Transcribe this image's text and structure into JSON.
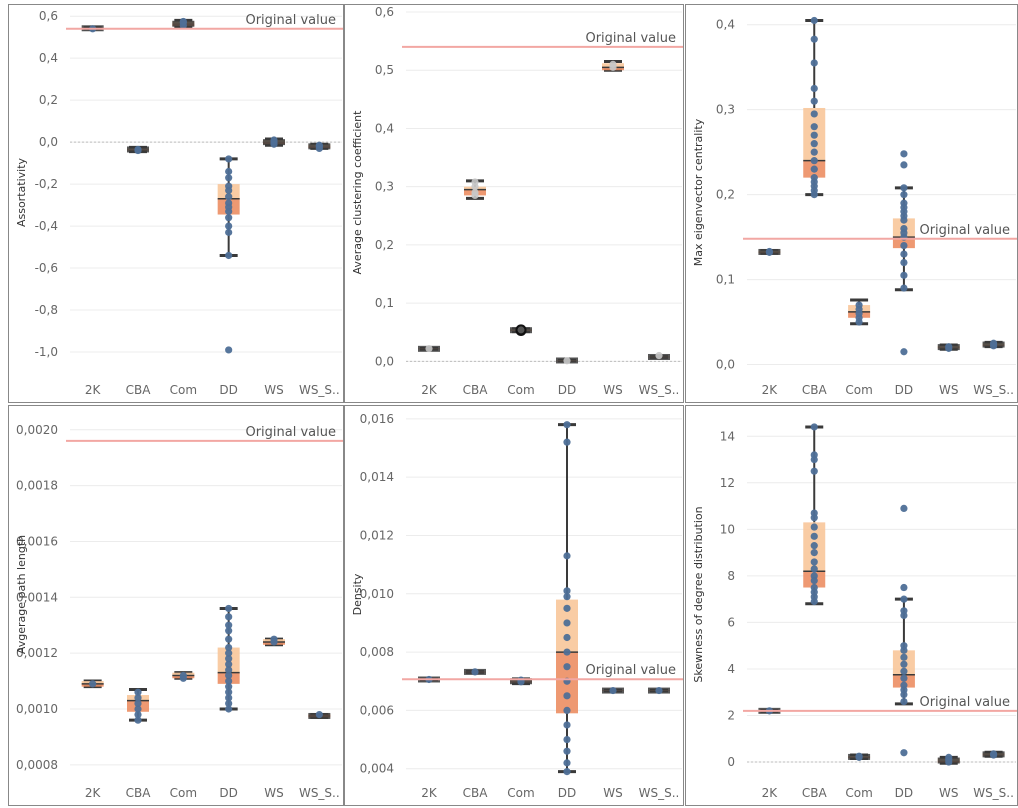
{
  "colors": {
    "original_line": "#f2a7a3",
    "point": "#4e6f97",
    "whisker": "#3a3a3a",
    "box_light": "#f8c69a",
    "box_dark": "#ec8e63",
    "zero_line": "#bdbdbd",
    "grid": "#ececec",
    "panel_border": "#888888",
    "faded_point": "#c8c8c8"
  },
  "chart_data": [
    {
      "type": "box",
      "ylabel": "Assortativity",
      "annotation": "Original value",
      "original_value": 0.54,
      "categories": [
        "2K",
        "CBA",
        "Com",
        "DD",
        "WS",
        "WS_S.."
      ],
      "ylim": [
        -1.1,
        0.62
      ],
      "yticks": [
        0.6,
        0.4,
        0.2,
        0.0,
        -0.2,
        -0.4,
        -0.6,
        -0.8,
        -1.0
      ],
      "ytick_labels": [
        "0,6",
        "0,4",
        "0,2",
        "0,0",
        "-0,2",
        "-0,4",
        "-0,6",
        "-0,8",
        "-1,0"
      ],
      "zero_line": true,
      "groups": [
        {
          "category": "2K",
          "min": 0.54,
          "q1": 0.54,
          "median": 0.54,
          "q3": 0.545,
          "max": 0.545,
          "points": [
            0.54
          ]
        },
        {
          "category": "CBA",
          "min": -0.045,
          "q1": -0.04,
          "median": -0.035,
          "q3": -0.03,
          "max": -0.025,
          "points": [
            -0.04,
            -0.035
          ]
        },
        {
          "category": "Com",
          "min": 0.55,
          "q1": 0.553,
          "median": 0.565,
          "q3": 0.575,
          "max": 0.58,
          "points": [
            0.555,
            0.57,
            0.575
          ]
        },
        {
          "category": "DD",
          "min": -0.54,
          "q1": -0.345,
          "median": -0.27,
          "q3": -0.2,
          "max": -0.08,
          "points": [
            -0.08,
            -0.14,
            -0.17,
            -0.21,
            -0.23,
            -0.26,
            -0.29,
            -0.31,
            -0.33,
            -0.36,
            -0.4,
            -0.43,
            -0.54,
            -0.99
          ]
        },
        {
          "category": "WS",
          "min": -0.015,
          "q1": -0.01,
          "median": 0.0,
          "q3": 0.01,
          "max": 0.015,
          "points": [
            -0.01,
            0.0,
            0.01
          ]
        },
        {
          "category": "WS_S..",
          "min": -0.03,
          "q1": -0.028,
          "median": -0.02,
          "q3": -0.012,
          "max": -0.01,
          "points": [
            -0.03,
            -0.02,
            -0.015
          ]
        }
      ]
    },
    {
      "type": "box",
      "ylabel": "Average clustering coefficient",
      "annotation": "Original value",
      "original_value": 0.54,
      "categories": [
        "2K",
        "CBA",
        "Com",
        "DD",
        "WS",
        "WS_S.."
      ],
      "ylim": [
        -0.02,
        0.6
      ],
      "yticks": [
        0.6,
        0.5,
        0.4,
        0.3,
        0.2,
        0.1,
        0.0
      ],
      "ytick_labels": [
        "0,6",
        "0,5",
        "0,4",
        "0,3",
        "0,2",
        "0,1",
        "0,0"
      ],
      "zero_line": true,
      "groups": [
        {
          "category": "2K",
          "min": 0.021,
          "q1": 0.021,
          "median": 0.022,
          "q3": 0.022,
          "max": 0.022,
          "points": [
            0.022
          ],
          "faded": true
        },
        {
          "category": "CBA",
          "min": 0.28,
          "q1": 0.285,
          "median": 0.295,
          "q3": 0.3,
          "max": 0.31,
          "points": [
            0.285,
            0.29,
            0.3,
            0.308
          ],
          "faded": true
        },
        {
          "category": "Com",
          "min": 0.051,
          "q1": 0.052,
          "median": 0.053,
          "q3": 0.055,
          "max": 0.056,
          "points": [
            0.053,
            0.054
          ],
          "highlight": true
        },
        {
          "category": "DD",
          "min": 0.001,
          "q1": 0.001,
          "median": 0.001,
          "q3": 0.002,
          "max": 0.002,
          "points": [
            0.001
          ],
          "faded": true
        },
        {
          "category": "WS",
          "min": 0.5,
          "q1": 0.5,
          "median": 0.505,
          "q3": 0.512,
          "max": 0.515,
          "points": [
            0.505,
            0.51
          ],
          "faded": true
        },
        {
          "category": "WS_S..",
          "min": 0.007,
          "q1": 0.007,
          "median": 0.008,
          "q3": 0.008,
          "max": 0.008,
          "points": [
            0.01
          ],
          "faded": true
        }
      ]
    },
    {
      "type": "box",
      "ylabel": "Max eigenvector centrality",
      "annotation": "Original value",
      "original_value": 0.148,
      "categories": [
        "2K",
        "CBA",
        "Com",
        "DD",
        "WS",
        "WS_S.."
      ],
      "ylim": [
        -0.01,
        0.415
      ],
      "yticks": [
        0.4,
        0.3,
        0.2,
        0.1,
        0.0
      ],
      "ytick_labels": [
        "0,4",
        "0,3",
        "0,2",
        "0,1",
        "0,0"
      ],
      "zero_line": false,
      "groups": [
        {
          "category": "2K",
          "min": 0.131,
          "q1": 0.131,
          "median": 0.132,
          "q3": 0.134,
          "max": 0.134,
          "points": [
            0.132,
            0.133
          ]
        },
        {
          "category": "CBA",
          "min": 0.2,
          "q1": 0.22,
          "median": 0.24,
          "q3": 0.302,
          "max": 0.405,
          "points": [
            0.2,
            0.205,
            0.21,
            0.215,
            0.22,
            0.23,
            0.24,
            0.25,
            0.26,
            0.27,
            0.28,
            0.295,
            0.31,
            0.325,
            0.355,
            0.383,
            0.405
          ]
        },
        {
          "category": "Com",
          "min": 0.048,
          "q1": 0.055,
          "median": 0.062,
          "q3": 0.07,
          "max": 0.076,
          "points": [
            0.05,
            0.055,
            0.06,
            0.065,
            0.07
          ]
        },
        {
          "category": "DD",
          "min": 0.088,
          "q1": 0.137,
          "median": 0.15,
          "q3": 0.172,
          "max": 0.208,
          "points": [
            0.015,
            0.09,
            0.105,
            0.12,
            0.13,
            0.14,
            0.15,
            0.155,
            0.16,
            0.17,
            0.175,
            0.18,
            0.185,
            0.19,
            0.2,
            0.208,
            0.235,
            0.248
          ]
        },
        {
          "category": "WS",
          "min": 0.018,
          "q1": 0.019,
          "median": 0.02,
          "q3": 0.022,
          "max": 0.023,
          "points": [
            0.019,
            0.021
          ]
        },
        {
          "category": "WS_S..",
          "min": 0.021,
          "q1": 0.022,
          "median": 0.023,
          "q3": 0.025,
          "max": 0.026,
          "points": [
            0.022,
            0.025
          ]
        }
      ]
    },
    {
      "type": "box",
      "ylabel": "Avgerage path length",
      "annotation": "Original value",
      "original_value": 0.00196,
      "categories": [
        "2K",
        "CBA",
        "Com",
        "DD",
        "WS",
        "WS_S.."
      ],
      "ylim": [
        0.00076,
        0.00206
      ],
      "yticks": [
        0.002,
        0.0018,
        0.0016,
        0.0014,
        0.0012,
        0.001,
        0.0008
      ],
      "ytick_labels": [
        "0,0020",
        "0,0018",
        "0,0016",
        "0,0014",
        "0,0012",
        "0,0010",
        "0,0008"
      ],
      "zero_line": false,
      "groups": [
        {
          "category": "2K",
          "min": 0.00108,
          "q1": 0.00108,
          "median": 0.00109,
          "q3": 0.0011,
          "max": 0.0011,
          "points": [
            0.00109
          ]
        },
        {
          "category": "CBA",
          "min": 0.00096,
          "q1": 0.00099,
          "median": 0.00103,
          "q3": 0.00105,
          "max": 0.00107,
          "points": [
            0.00096,
            0.00098,
            0.001,
            0.00102,
            0.00104,
            0.00106
          ]
        },
        {
          "category": "Com",
          "min": 0.00111,
          "q1": 0.00111,
          "median": 0.00112,
          "q3": 0.00113,
          "max": 0.00113,
          "points": [
            0.00111,
            0.00112
          ]
        },
        {
          "category": "DD",
          "min": 0.001,
          "q1": 0.00109,
          "median": 0.00113,
          "q3": 0.00122,
          "max": 0.00136,
          "points": [
            0.001,
            0.00102,
            0.00104,
            0.00106,
            0.00108,
            0.0011,
            0.00112,
            0.00114,
            0.00116,
            0.00118,
            0.0012,
            0.00122,
            0.00125,
            0.00128,
            0.0013,
            0.00133,
            0.00136
          ]
        },
        {
          "category": "WS",
          "min": 0.00123,
          "q1": 0.00123,
          "median": 0.00124,
          "q3": 0.00125,
          "max": 0.00125,
          "points": [
            0.00124,
            0.00125
          ]
        },
        {
          "category": "WS_S..",
          "min": 0.00097,
          "q1": 0.00097,
          "median": 0.00098,
          "q3": 0.00098,
          "max": 0.00098,
          "points": [
            0.00098
          ]
        }
      ]
    },
    {
      "type": "box",
      "ylabel": "Density",
      "annotation": "Original value",
      "original_value": 0.00707,
      "categories": [
        "2K",
        "CBA",
        "Com",
        "DD",
        "WS",
        "WS_S.."
      ],
      "ylim": [
        0.00375,
        0.0162
      ],
      "yticks": [
        0.016,
        0.014,
        0.012,
        0.01,
        0.008,
        0.006,
        0.004
      ],
      "ytick_labels": [
        "0,016",
        "0,014",
        "0,012",
        "0,010",
        "0,008",
        "0,006",
        "0,004"
      ],
      "zero_line": false,
      "groups": [
        {
          "category": "2K",
          "min": 0.00705,
          "q1": 0.00705,
          "median": 0.00706,
          "q3": 0.00707,
          "max": 0.00707,
          "points": [
            0.00706
          ]
        },
        {
          "category": "CBA",
          "min": 0.00731,
          "q1": 0.00731,
          "median": 0.00732,
          "q3": 0.00733,
          "max": 0.00733,
          "points": [
            0.00732
          ]
        },
        {
          "category": "Com",
          "min": 0.00692,
          "q1": 0.00695,
          "median": 0.007,
          "q3": 0.00705,
          "max": 0.00708,
          "points": [
            0.00698,
            0.00704
          ]
        },
        {
          "category": "DD",
          "min": 0.0039,
          "q1": 0.0059,
          "median": 0.008,
          "q3": 0.0098,
          "max": 0.0158,
          "points": [
            0.0039,
            0.0042,
            0.0046,
            0.005,
            0.0055,
            0.006,
            0.0065,
            0.007,
            0.0075,
            0.008,
            0.0085,
            0.009,
            0.0095,
            0.0099,
            0.0101,
            0.0113,
            0.0152,
            0.0158
          ]
        },
        {
          "category": "WS",
          "min": 0.00667,
          "q1": 0.00667,
          "median": 0.00668,
          "q3": 0.00669,
          "max": 0.00669,
          "points": [
            0.00668
          ]
        },
        {
          "category": "WS_S..",
          "min": 0.00667,
          "q1": 0.00667,
          "median": 0.00668,
          "q3": 0.00669,
          "max": 0.00669,
          "points": [
            0.00668
          ]
        }
      ]
    },
    {
      "type": "box",
      "ylabel": "Skewness of degree distribution",
      "annotation": "Original value",
      "original_value": 2.2,
      "categories": [
        "2K",
        "CBA",
        "Com",
        "DD",
        "WS",
        "WS_S.."
      ],
      "ylim": [
        -0.6,
        15.0
      ],
      "yticks": [
        14,
        12,
        10,
        8,
        6,
        4,
        2,
        0
      ],
      "ytick_labels": [
        "14",
        "12",
        "10",
        "8",
        "6",
        "4",
        "2",
        "0"
      ],
      "zero_line": true,
      "groups": [
        {
          "category": "2K",
          "min": 2.18,
          "q1": 2.18,
          "median": 2.2,
          "q3": 2.22,
          "max": 2.22,
          "points": [
            2.2
          ]
        },
        {
          "category": "CBA",
          "min": 6.8,
          "q1": 7.5,
          "median": 8.2,
          "q3": 10.3,
          "max": 14.4,
          "points": [
            6.9,
            7.1,
            7.3,
            7.5,
            7.8,
            8.0,
            8.3,
            8.6,
            9.0,
            9.3,
            9.7,
            10.1,
            10.5,
            10.7,
            12.5,
            13.0,
            13.2,
            14.4
          ]
        },
        {
          "category": "Com",
          "min": 0.15,
          "q1": 0.18,
          "median": 0.22,
          "q3": 0.26,
          "max": 0.3,
          "points": [
            0.2,
            0.25
          ]
        },
        {
          "category": "DD",
          "min": 2.5,
          "q1": 3.2,
          "median": 3.75,
          "q3": 4.8,
          "max": 7.0,
          "points": [
            0.4,
            2.6,
            2.9,
            3.1,
            3.3,
            3.6,
            3.9,
            4.2,
            4.5,
            4.8,
            5.0,
            6.3,
            6.5,
            7.0,
            7.5,
            10.9
          ]
        },
        {
          "category": "WS",
          "min": -0.05,
          "q1": -0.02,
          "median": 0.05,
          "q3": 0.15,
          "max": 0.2,
          "points": [
            0.0,
            0.1,
            0.2
          ]
        },
        {
          "category": "WS_S..",
          "min": 0.25,
          "q1": 0.28,
          "median": 0.32,
          "q3": 0.38,
          "max": 0.42,
          "points": [
            0.3,
            0.35
          ]
        }
      ]
    }
  ]
}
